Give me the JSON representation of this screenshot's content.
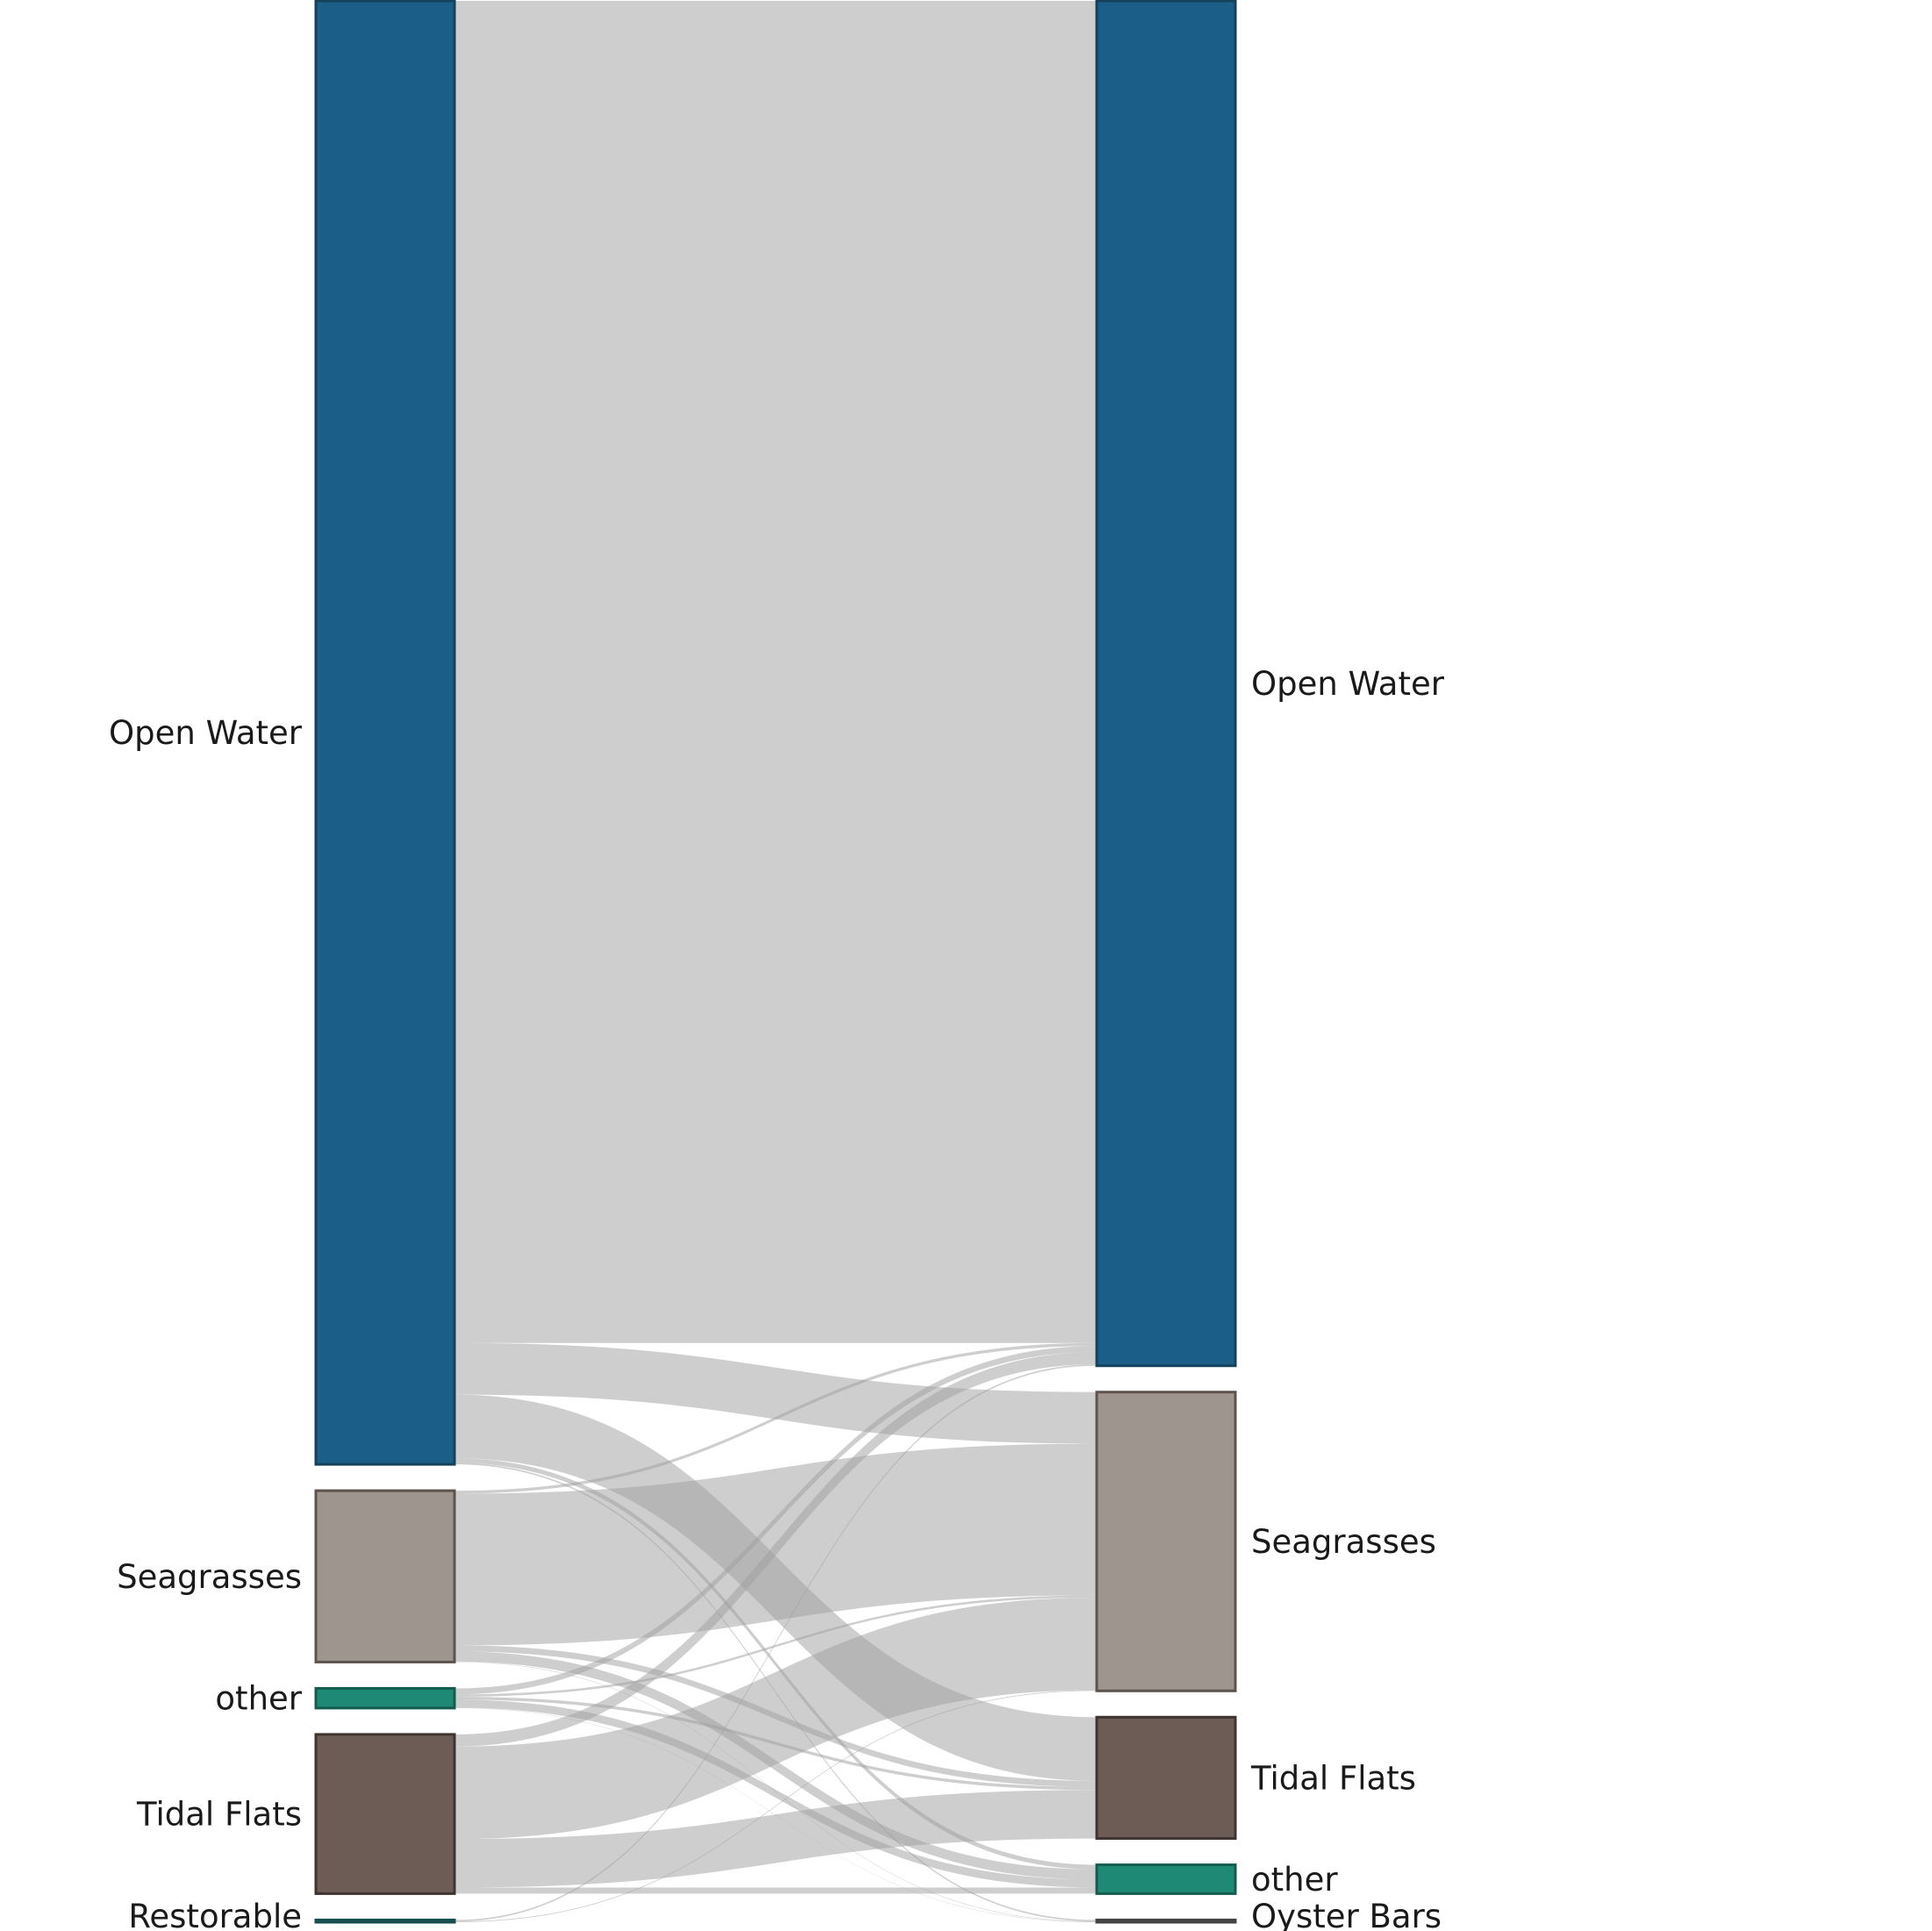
{
  "chart_data": {
    "type": "sankey",
    "title": "",
    "link_color": "#9e9e9e",
    "sources": [
      {
        "id": "s_open_water",
        "label": "Open Water",
        "value": 9650,
        "color": "#1b5f88",
        "border": "#16415b"
      },
      {
        "id": "s_seagrasses",
        "label": "Seagrasses",
        "value": 1130,
        "color": "#9e958f",
        "border": "#5d524c"
      },
      {
        "id": "s_other",
        "label": "other",
        "value": 130,
        "color": "#1e8a76",
        "border": "#155b4e"
      },
      {
        "id": "s_tidal_flats",
        "label": "Tidal Flats",
        "value": 1050,
        "color": "#6c5c55",
        "border": "#3f3431"
      },
      {
        "id": "s_restorable",
        "label": "Restorable",
        "value": 15,
        "color": "#1e6b6b",
        "border": "#155050"
      }
    ],
    "targets": [
      {
        "id": "t_open_water",
        "label": "Open Water",
        "value": 9000,
        "color": "#1b5f88",
        "border": "#16415b"
      },
      {
        "id": "t_seagrasses",
        "label": "Seagrasses",
        "value": 1970,
        "color": "#9e958f",
        "border": "#5d524c"
      },
      {
        "id": "t_tidal_flats",
        "label": "Tidal Flats",
        "value": 800,
        "color": "#6c5c55",
        "border": "#3f3431"
      },
      {
        "id": "t_other",
        "label": "other",
        "value": 190,
        "color": "#1e8a76",
        "border": "#155b4e"
      },
      {
        "id": "t_oyster_bars",
        "label": "Oyster Bars",
        "value": 15,
        "color": "#555555",
        "border": "#444444"
      }
    ],
    "links": [
      {
        "source": "s_open_water",
        "target": "t_open_water",
        "value": 8850
      },
      {
        "source": "s_open_water",
        "target": "t_seagrasses",
        "value": 340
      },
      {
        "source": "s_open_water",
        "target": "t_tidal_flats",
        "value": 420
      },
      {
        "source": "s_open_water",
        "target": "t_other",
        "value": 30
      },
      {
        "source": "s_open_water",
        "target": "t_oyster_bars",
        "value": 10
      },
      {
        "source": "s_seagrasses",
        "target": "t_open_water",
        "value": 20
      },
      {
        "source": "s_seagrasses",
        "target": "t_seagrasses",
        "value": 1000
      },
      {
        "source": "s_seagrasses",
        "target": "t_tidal_flats",
        "value": 40
      },
      {
        "source": "s_seagrasses",
        "target": "t_other",
        "value": 67
      },
      {
        "source": "s_seagrasses",
        "target": "t_oyster_bars",
        "value": 3
      },
      {
        "source": "s_other",
        "target": "t_open_water",
        "value": 40
      },
      {
        "source": "s_other",
        "target": "t_seagrasses",
        "value": 15
      },
      {
        "source": "s_other",
        "target": "t_tidal_flats",
        "value": 20
      },
      {
        "source": "s_other",
        "target": "t_other",
        "value": 53
      },
      {
        "source": "s_other",
        "target": "t_oyster_bars",
        "value": 2
      },
      {
        "source": "s_tidal_flats",
        "target": "t_open_water",
        "value": 80
      },
      {
        "source": "s_tidal_flats",
        "target": "t_seagrasses",
        "value": 610
      },
      {
        "source": "s_tidal_flats",
        "target": "t_tidal_flats",
        "value": 320
      },
      {
        "source": "s_tidal_flats",
        "target": "t_other",
        "value": 40
      },
      {
        "source": "s_restorable",
        "target": "t_open_water",
        "value": 10
      },
      {
        "source": "s_restorable",
        "target": "t_seagrasses",
        "value": 5
      }
    ]
  }
}
